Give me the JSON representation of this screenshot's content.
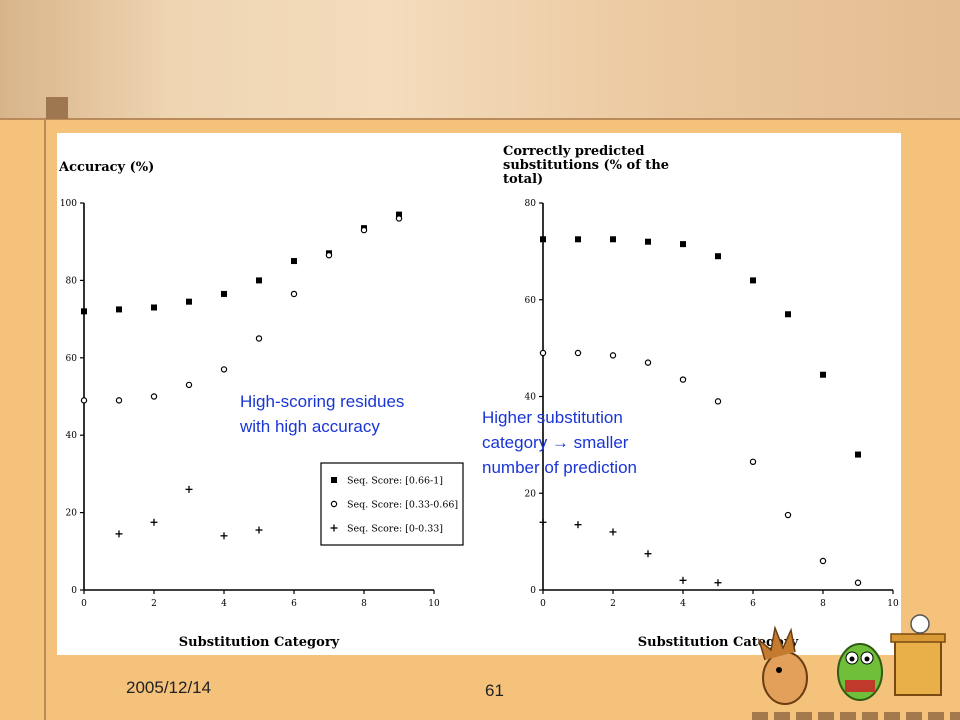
{
  "footer": {
    "date": "2005/12/14",
    "page_number": "61"
  },
  "annotations": {
    "high_scoring": "High-scoring residues\nwith high accuracy",
    "higher_substitution": "Higher substitution\ncategory → smaller\nnumber of prediction"
  },
  "chart_data": [
    {
      "type": "scatter",
      "ylabel": "Accuracy (%)",
      "xlabel": "Substitution Category",
      "xlim": [
        0,
        10
      ],
      "ylim": [
        0,
        100
      ],
      "xticks": [
        0,
        2,
        4,
        6,
        8,
        10
      ],
      "yticks": [
        0,
        20,
        40,
        60,
        80,
        100
      ],
      "legend_position": "center-right",
      "series": [
        {
          "name": "Seq. Score: [0.66-1]",
          "marker": "square",
          "x": [
            0,
            1,
            2,
            3,
            4,
            5,
            6,
            7,
            8,
            9
          ],
          "y": [
            72,
            72.5,
            73,
            74.5,
            76.5,
            80,
            85,
            87,
            93.5,
            97
          ]
        },
        {
          "name": "Seq. Score: [0.33-0.66]",
          "marker": "circle",
          "x": [
            0,
            1,
            2,
            3,
            4,
            5,
            6,
            7,
            8,
            9
          ],
          "y": [
            49,
            49,
            50,
            53,
            57,
            65,
            76.5,
            86.5,
            93,
            96
          ]
        },
        {
          "name": "Seq. Score: [0-0.33]",
          "marker": "plus",
          "x": [
            1,
            2,
            3,
            4,
            5
          ],
          "y": [
            14.5,
            17.5,
            26,
            14,
            15.5
          ]
        }
      ]
    },
    {
      "type": "scatter",
      "ylabel": "Correctly predicted substitutions (% of the total)",
      "ylabel_lines": [
        "Correctly predicted",
        "substitutions (% of the",
        "total)"
      ],
      "xlabel": "Substitution Category",
      "xlim": [
        0,
        10
      ],
      "ylim": [
        0,
        80
      ],
      "xticks": [
        0,
        2,
        4,
        6,
        8,
        10
      ],
      "yticks": [
        0,
        20,
        40,
        60,
        80
      ],
      "series": [
        {
          "marker": "square",
          "x": [
            0,
            1,
            2,
            3,
            4,
            5,
            6,
            7,
            8,
            9
          ],
          "y": [
            72.5,
            72.5,
            72.5,
            72,
            71.5,
            69,
            64,
            57,
            44.5,
            28
          ]
        },
        {
          "marker": "circle",
          "x": [
            0,
            1,
            2,
            3,
            4,
            5,
            6,
            7,
            8,
            9
          ],
          "y": [
            49,
            49,
            48.5,
            47,
            43.5,
            39,
            26.5,
            15.5,
            6,
            1.5
          ]
        },
        {
          "marker": "plus",
          "x": [
            0,
            1,
            2,
            3,
            4,
            5
          ],
          "y": [
            14,
            13.5,
            12,
            7.5,
            2,
            1.5
          ]
        }
      ]
    }
  ]
}
